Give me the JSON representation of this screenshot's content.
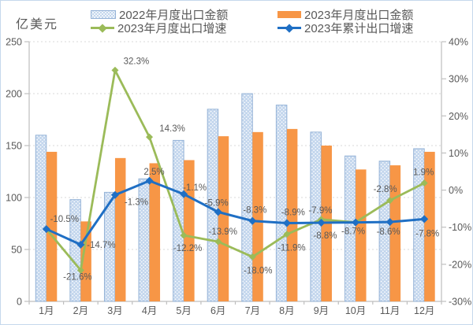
{
  "page": {
    "background": "#ffffff",
    "border_color": "#c5d8ec"
  },
  "chart_data": {
    "type": "combo-bar-line",
    "title": "",
    "categories": [
      "1月",
      "2月",
      "3月",
      "4月",
      "5月",
      "6月",
      "7月",
      "8月",
      "9月",
      "10月",
      "11月",
      "12月"
    ],
    "series": [
      {
        "name": "2022年月度出口金额",
        "type": "bar",
        "axis": "left",
        "values": [
          160,
          98,
          105,
          118,
          155,
          185,
          200,
          189,
          163,
          140,
          135,
          147
        ]
      },
      {
        "name": "2023年月度出口金额",
        "type": "bar",
        "axis": "left",
        "values": [
          144,
          77,
          138,
          133,
          136,
          159,
          163,
          166,
          150,
          127,
          131,
          144
        ]
      },
      {
        "name": "2023年月度出口增速",
        "type": "line",
        "axis": "right",
        "values": [
          -10.5,
          -21.6,
          32.3,
          14.3,
          -12.2,
          -13.9,
          -18.0,
          -11.9,
          -7.9,
          -8.7,
          -2.8,
          1.9
        ],
        "point_labels": [
          "",
          "-21.6%",
          "32.3%",
          "14.3%",
          "-12.2%",
          "-13.9%",
          "-18.0%",
          "-11.9%",
          "-7.9%",
          "",
          "-2.8%",
          "1.9%"
        ]
      },
      {
        "name": "2023年累计出口增速",
        "type": "line",
        "axis": "right",
        "values": [
          -10.5,
          -14.7,
          -1.3,
          2.5,
          -1.1,
          -5.9,
          -8.3,
          -8.9,
          -8.8,
          -8.7,
          -8.6,
          -7.8
        ],
        "point_labels": [
          "-10.5%",
          "-14.7%",
          "-1.3%",
          "2.5%",
          "-1.1%",
          "-5.9%",
          "-8.3%",
          "-8.9%",
          "-8.8%",
          "-8.7%",
          "-8.6%",
          "-7.8%"
        ]
      }
    ],
    "left_axis": {
      "title": "亿美元",
      "min": 0,
      "max": 250,
      "tick_labels": [
        "0",
        "50",
        "100",
        "150",
        "200",
        "250"
      ]
    },
    "right_axis": {
      "min": -30,
      "max": 40,
      "tick_labels": [
        "-30%",
        "-20%",
        "-10%",
        "0%",
        "10%",
        "20%",
        "30%",
        "40%"
      ]
    },
    "grid": true,
    "legend_position": "top",
    "colors": {
      "bar_2022": "#C3D6ED",
      "bar_2022_border": "#95B3D7",
      "bar_2023": "#F79646",
      "line_monthly": "#9BBB59",
      "line_cumulative": "#1F6FC4",
      "label_text": "#595959",
      "axis_text": "#595959",
      "gridline": "#D8D8D8",
      "axis_line": "#BFBFBF"
    }
  }
}
